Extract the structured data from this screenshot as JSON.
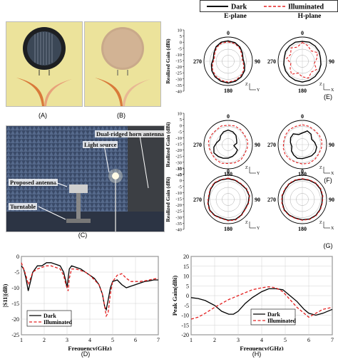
{
  "legend": {
    "dark": "Dark",
    "illuminated": "Illuminated"
  },
  "panels": {
    "A": "(A)",
    "B": "(B)",
    "C": "(C)",
    "D": "(D)",
    "E": "(E)",
    "F": "(F)",
    "G": "(G)",
    "H": "(H)"
  },
  "photo_c": {
    "horn": "Dual-ridged horn antenna",
    "light": "Light source",
    "antenna": "Proposed antenna",
    "turntable": "Turntable"
  },
  "polar": {
    "e_plane_title": "E-plane",
    "h_plane_title": "H-plane",
    "ylabel": "Realized  Gain (dBi)",
    "ticks": [
      "10",
      "5",
      "0",
      "-5",
      "-10",
      "-15",
      "-20",
      "-25",
      "-30",
      "-35",
      "-40"
    ],
    "angle_0": "0",
    "angle_90": "90",
    "angle_180": "180",
    "angle_270": "270",
    "axis_z": "Z",
    "axis_y": "Y",
    "axis_x": "X"
  },
  "chart_data": [
    {
      "type": "line",
      "panel": "D",
      "xlabel": "Frequency(GHz)",
      "ylabel": "|S11|(dB)",
      "xlim": [
        1,
        7
      ],
      "ylim": [
        -25,
        0
      ],
      "xticks": [
        "1",
        "2",
        "3",
        "4",
        "5",
        "6",
        "7"
      ],
      "yticks": [
        "0",
        "-5",
        "-10",
        "-15",
        "-20",
        "-25"
      ],
      "grid": true,
      "legend_position": "bottom-left",
      "series": [
        {
          "name": "Dark",
          "color": "#000000",
          "dash": "solid",
          "x": [
            1.0,
            1.1,
            1.2,
            1.3,
            1.4,
            1.5,
            1.7,
            1.9,
            2.1,
            2.3,
            2.5,
            2.7,
            2.85,
            2.95,
            3.0,
            3.05,
            3.1,
            3.2,
            3.4,
            3.6,
            3.8,
            4.0,
            4.2,
            4.4,
            4.55,
            4.65,
            4.72,
            4.8,
            4.9,
            5.0,
            5.2,
            5.4,
            5.6,
            5.8,
            6.0,
            6.2,
            6.4,
            6.6,
            6.8,
            7.0
          ],
          "y": [
            -3,
            -4,
            -7,
            -11,
            -8,
            -5,
            -3,
            -3,
            -2,
            -2,
            -2.5,
            -3,
            -5,
            -8,
            -10,
            -7,
            -4,
            -3,
            -3.5,
            -4,
            -5,
            -6,
            -7,
            -9,
            -12,
            -16,
            -17,
            -14,
            -10,
            -8,
            -7.5,
            -9,
            -10,
            -9.5,
            -9,
            -8.5,
            -8,
            -7.8,
            -7.5,
            -7.5
          ]
        },
        {
          "name": "Illuminated",
          "color": "#e32020",
          "dash": "dashed",
          "x": [
            1.0,
            1.1,
            1.2,
            1.3,
            1.4,
            1.5,
            1.7,
            1.9,
            2.1,
            2.3,
            2.5,
            2.7,
            2.85,
            2.95,
            3.05,
            3.1,
            3.2,
            3.4,
            3.6,
            3.8,
            4.0,
            4.2,
            4.4,
            4.55,
            4.65,
            4.72,
            4.8,
            4.9,
            5.0,
            5.2,
            5.4,
            5.6,
            5.8,
            6.0,
            6.2,
            6.4,
            6.6,
            6.8,
            7.0
          ],
          "y": [
            -2,
            -4,
            -6,
            -9,
            -7,
            -5,
            -4,
            -3.5,
            -3,
            -3,
            -3.5,
            -4,
            -6,
            -9,
            -11,
            -7,
            -4,
            -4,
            -4.5,
            -5,
            -6,
            -7.5,
            -9,
            -12,
            -16,
            -19,
            -18,
            -12,
            -8,
            -6,
            -5.5,
            -7,
            -8,
            -8,
            -8,
            -7.8,
            -7.5,
            -7.2,
            -7
          ]
        }
      ]
    },
    {
      "type": "line",
      "panel": "H",
      "xlabel": "Frequency(GHz)",
      "ylabel": "Peak Gain(dBi)",
      "xlim": [
        1,
        7
      ],
      "ylim": [
        -20,
        20
      ],
      "xticks": [
        "1",
        "2",
        "3",
        "4",
        "5",
        "6",
        "7"
      ],
      "yticks": [
        "20",
        "15",
        "10",
        "5",
        "0",
        "-5",
        "-10",
        "-15",
        "-20"
      ],
      "grid": true,
      "legend_position": "bottom-center",
      "series": [
        {
          "name": "Dark",
          "color": "#000000",
          "dash": "solid",
          "x": [
            1.0,
            1.3,
            1.6,
            2.0,
            2.3,
            2.6,
            2.8,
            3.0,
            3.3,
            3.6,
            4.0,
            4.3,
            4.6,
            4.9,
            5.2,
            5.5,
            5.8,
            6.0,
            6.3,
            6.6,
            7.0
          ],
          "y": [
            -1,
            -1.5,
            -2.5,
            -5,
            -8,
            -9.5,
            -9.5,
            -8,
            -4,
            -1,
            2,
            3.5,
            3.5,
            3,
            0,
            -3,
            -7,
            -9,
            -10,
            -9,
            -7
          ]
        },
        {
          "name": "Illuminated",
          "color": "#e32020",
          "dash": "dashed",
          "x": [
            1.0,
            1.3,
            1.6,
            2.0,
            2.3,
            2.6,
            2.8,
            3.0,
            3.3,
            3.6,
            4.0,
            4.3,
            4.6,
            4.9,
            5.2,
            5.5,
            5.8,
            6.0,
            6.3,
            6.6,
            7.0
          ],
          "y": [
            -12,
            -11,
            -9,
            -6,
            -4,
            -2,
            -1,
            0,
            1.5,
            3,
            4,
            4.5,
            4,
            2,
            -2,
            -6,
            -9,
            -11,
            -9,
            -7,
            -6
          ]
        }
      ]
    },
    {
      "type": "polar",
      "panel": "E",
      "rlim": [
        -40,
        10
      ],
      "patterns": [
        {
          "plane": "E-plane",
          "series": [
            {
              "name": "Dark",
              "color": "#000000",
              "dash": "solid",
              "r": [
                2,
                1,
                -2,
                -6,
                -9,
                -6,
                -1,
                2,
                4,
                5,
                4,
                2,
                -1,
                -5,
                -9,
                -6,
                -1,
                2
              ]
            },
            {
              "name": "Illuminated",
              "color": "#e32020",
              "dash": "dashed",
              "r": [
                0,
                -1,
                -4,
                -8,
                -11,
                -8,
                -3,
                0,
                2,
                3,
                2,
                0,
                -3,
                -7,
                -11,
                -8,
                -3,
                0
              ]
            }
          ]
        },
        {
          "plane": "H-plane",
          "series": [
            {
              "name": "Dark",
              "color": "#000000",
              "dash": "solid",
              "r": [
                1,
                2,
                1,
                0,
                -2,
                -1,
                0,
                1,
                2,
                3,
                2,
                1,
                0,
                -1,
                -2,
                0,
                1,
                2
              ]
            },
            {
              "name": "Illuminated",
              "color": "#e32020",
              "dash": "dashed",
              "r": [
                -1,
                -6,
                -12,
                -4,
                -10,
                -15,
                -6,
                -11,
                -3,
                -8,
                -14,
                -5,
                -11,
                -16,
                -7,
                -12,
                -4,
                -9
              ]
            }
          ]
        }
      ]
    },
    {
      "type": "polar",
      "panel": "F",
      "rlim": [
        -40,
        10
      ],
      "patterns": [
        {
          "plane": "E-plane",
          "series": [
            {
              "name": "Dark",
              "color": "#000000",
              "dash": "solid",
              "r": [
                -10,
                -12,
                -15,
                -20,
                -22,
                -28,
                -18,
                -16,
                -14,
                -12,
                -10,
                -8,
                -6,
                -10,
                -16,
                -20,
                -16,
                -12
              ]
            },
            {
              "name": "Illuminated",
              "color": "#e32020",
              "dash": "dashed",
              "r": [
                0,
                1,
                0,
                -1,
                1,
                0,
                -1,
                1,
                0,
                -1,
                1,
                0,
                -1,
                0,
                1,
                0,
                -1,
                1
              ]
            }
          ]
        },
        {
          "plane": "H-plane",
          "series": [
            {
              "name": "Dark",
              "color": "#000000",
              "dash": "solid",
              "r": [
                -16,
                -10,
                -12,
                -18,
                -14,
                -10,
                -9,
                -10,
                -12,
                -11,
                -10,
                -12,
                -14,
                -18,
                -15,
                -12,
                -11,
                -18
              ]
            },
            {
              "name": "Illuminated",
              "color": "#e32020",
              "dash": "dashed",
              "r": [
                1,
                0,
                -1,
                0,
                1,
                0,
                -1,
                0,
                1,
                0,
                -1,
                0,
                1,
                0,
                -1,
                0,
                1,
                0
              ]
            }
          ]
        }
      ]
    },
    {
      "type": "polar",
      "panel": "G",
      "rlim": [
        -40,
        10
      ],
      "patterns": [
        {
          "plane": "E-plane",
          "series": [
            {
              "name": "Dark",
              "color": "#000000",
              "dash": "solid",
              "r": [
                3,
                2,
                1,
                3,
                4,
                2,
                0,
                2,
                4,
                3,
                1,
                3,
                4,
                2,
                0,
                2,
                4,
                3
              ]
            },
            {
              "name": "Illuminated",
              "color": "#e32020",
              "dash": "dashed",
              "r": [
                4,
                3,
                2,
                4,
                5,
                3,
                1,
                3,
                5,
                4,
                2,
                4,
                5,
                3,
                1,
                3,
                5,
                4
              ]
            }
          ]
        },
        {
          "plane": "H-plane",
          "series": [
            {
              "name": "Dark",
              "color": "#000000",
              "dash": "solid",
              "r": [
                2,
                2,
                3,
                3,
                2,
                1,
                2,
                3,
                3,
                2,
                1,
                2,
                3,
                2,
                2,
                1,
                2,
                2
              ]
            },
            {
              "name": "Illuminated",
              "color": "#e32020",
              "dash": "dashed",
              "r": [
                3,
                3,
                4,
                4,
                3,
                2,
                3,
                4,
                4,
                3,
                2,
                3,
                4,
                3,
                3,
                2,
                3,
                3
              ]
            }
          ]
        }
      ]
    }
  ]
}
